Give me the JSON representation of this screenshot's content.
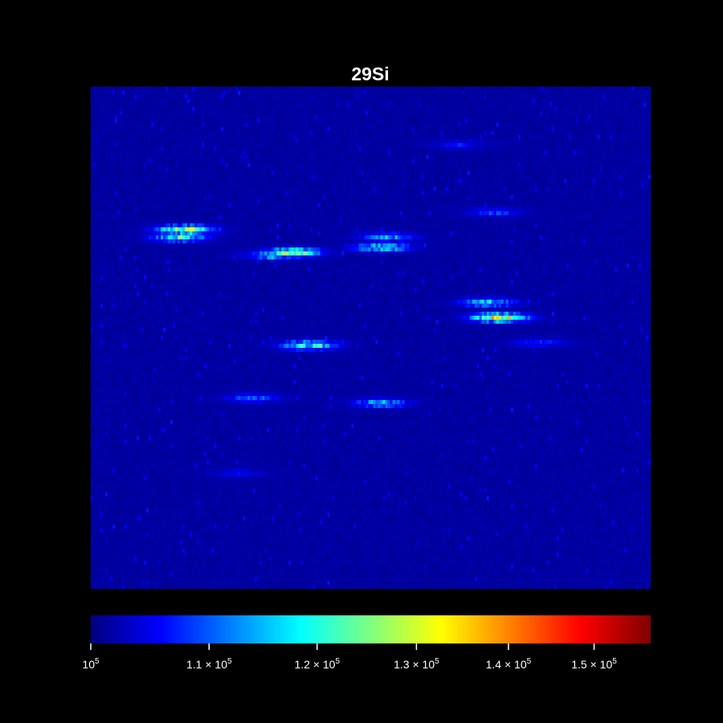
{
  "chart_data": {
    "type": "heatmap",
    "title": "29Si",
    "xlabel": "",
    "ylabel": "",
    "colormap": "jet",
    "colorbar": {
      "scale": "log",
      "range": [
        100000,
        157000
      ],
      "ticks": [
        {
          "value": 100000,
          "mantissa": "",
          "times": "",
          "base": "10",
          "exp": "5"
        },
        {
          "value": 110000,
          "mantissa": "1.1",
          "times": "×",
          "base": "10",
          "exp": "5"
        },
        {
          "value": 120000,
          "mantissa": "1.2",
          "times": "×",
          "base": "10",
          "exp": "5"
        },
        {
          "value": 130000,
          "mantissa": "1.3",
          "times": "×",
          "base": "10",
          "exp": "5"
        },
        {
          "value": 140000,
          "mantissa": "1.4",
          "times": "×",
          "base": "10",
          "exp": "5"
        },
        {
          "value": 150000,
          "mantissa": "1.5",
          "times": "×",
          "base": "10",
          "exp": "5"
        }
      ]
    },
    "background_level": 101500,
    "hotspots": [
      {
        "x": 0.17,
        "y": 0.285,
        "value": 128000
      },
      {
        "x": 0.16,
        "y": 0.3,
        "value": 118000
      },
      {
        "x": 0.36,
        "y": 0.33,
        "value": 124000
      },
      {
        "x": 0.33,
        "y": 0.335,
        "value": 116000
      },
      {
        "x": 0.52,
        "y": 0.32,
        "value": 117000
      },
      {
        "x": 0.53,
        "y": 0.3,
        "value": 112000
      },
      {
        "x": 0.73,
        "y": 0.46,
        "value": 130000
      },
      {
        "x": 0.71,
        "y": 0.43,
        "value": 115000
      },
      {
        "x": 0.72,
        "y": 0.25,
        "value": 108000
      },
      {
        "x": 0.39,
        "y": 0.515,
        "value": 120000
      },
      {
        "x": 0.29,
        "y": 0.62,
        "value": 110000
      },
      {
        "x": 0.52,
        "y": 0.63,
        "value": 113000
      },
      {
        "x": 0.66,
        "y": 0.115,
        "value": 106000
      },
      {
        "x": 0.8,
        "y": 0.51,
        "value": 107000
      },
      {
        "x": 0.26,
        "y": 0.77,
        "value": 105000
      }
    ]
  }
}
